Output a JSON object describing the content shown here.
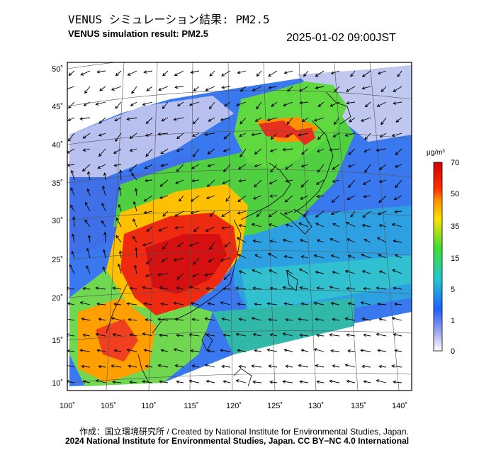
{
  "header": {
    "title_jp": "VENUS シミュレーション結果: PM2.5",
    "title_en": "VENUS simulation result: PM2.5",
    "timestamp": "2025-01-02 09:00JST"
  },
  "map": {
    "region": "East Asia",
    "lat_ticks": [
      "50˚",
      "45˚",
      "40˚",
      "35˚",
      "30˚",
      "25˚",
      "20˚",
      "15˚",
      "10˚"
    ],
    "lon_ticks": [
      "100˚",
      "105˚",
      "110˚",
      "115˚",
      "120˚",
      "125˚",
      "130˚",
      "135˚",
      "140˚"
    ]
  },
  "legend": {
    "unit": "μg/m³",
    "levels": [
      "70",
      "50",
      "35",
      "15",
      "5",
      "1",
      "0"
    ],
    "colors": [
      "#e00000",
      "#ff8000",
      "#ffd000",
      "#60e020",
      "#20c0c0",
      "#2080ff",
      "#3040d0",
      "#c8c8f0",
      "#ffffff"
    ]
  },
  "footer": {
    "credit_jp": "作成：国立環境研究所 / Created by National Institute for Environmental Studies, Japan.",
    "credit_license": "2024 National Institute for Environmental Studies, Japan. CC BY−NC 4.0 International"
  }
}
